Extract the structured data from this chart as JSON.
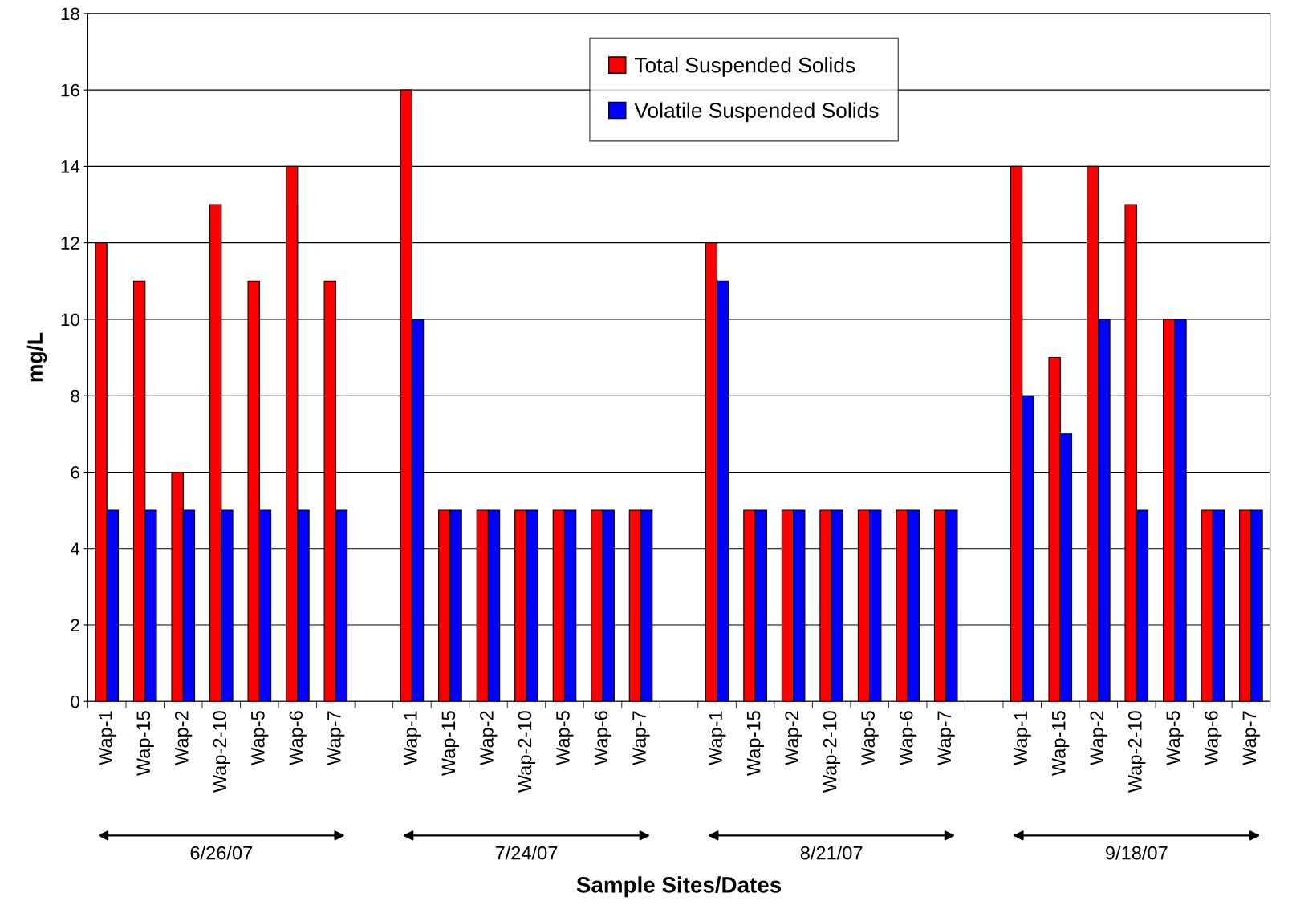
{
  "chart_data": {
    "type": "bar",
    "categories": [
      "Wap-1",
      "Wap-15",
      "Wap-2",
      "Wap-2-10",
      "Wap-5",
      "Wap-6",
      "Wap-7",
      null,
      "Wap-1",
      "Wap-15",
      "Wap-2",
      "Wap-2-10",
      "Wap-5",
      "Wap-6",
      "Wap-7",
      null,
      "Wap-1",
      "Wap-15",
      "Wap-2",
      "Wap-2-10",
      "Wap-5",
      "Wap-6",
      "Wap-7",
      null,
      "Wap-1",
      "Wap-15",
      "Wap-2",
      "Wap-2-10",
      "Wap-5",
      "Wap-6",
      "Wap-7"
    ],
    "series": [
      {
        "name": "Total Suspended Solids",
        "color": "#ff0000",
        "values": [
          12,
          11,
          6,
          13,
          11,
          14,
          11,
          null,
          16,
          5,
          5,
          5,
          5,
          5,
          5,
          null,
          12,
          5,
          5,
          5,
          5,
          5,
          5,
          null,
          14,
          9,
          14,
          13,
          10,
          5,
          5
        ]
      },
      {
        "name": "Volatile Suspended Solids",
        "color": "#0000ff",
        "values": [
          5,
          5,
          5,
          5,
          5,
          5,
          5,
          null,
          10,
          5,
          5,
          5,
          5,
          5,
          5,
          null,
          11,
          5,
          5,
          5,
          5,
          5,
          5,
          null,
          8,
          7,
          10,
          5,
          10,
          5,
          5
        ]
      }
    ],
    "xlabel": "Sample Sites/Dates",
    "ylabel": "mg/L",
    "ylim": [
      0,
      18
    ],
    "yticks": [
      0,
      2,
      4,
      6,
      8,
      10,
      12,
      14,
      16,
      18
    ],
    "grid": "y",
    "legend": "top",
    "annotations": [
      "6/26/07",
      "7/24/07",
      "8/21/07",
      "9/18/07"
    ]
  }
}
